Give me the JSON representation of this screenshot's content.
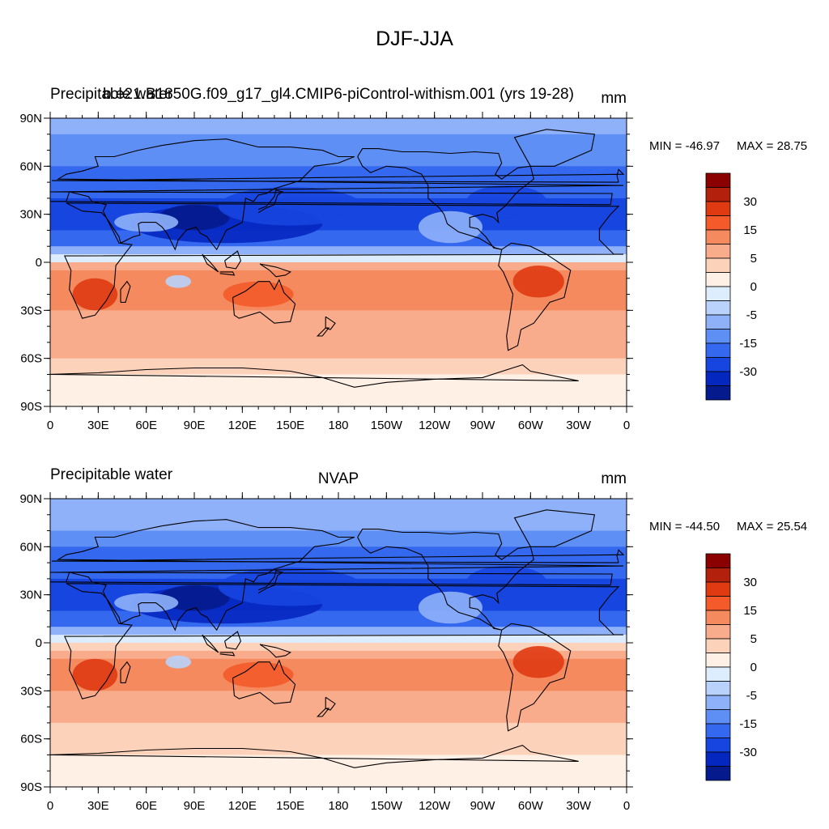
{
  "figure_title": "DJF-JJA",
  "colors": {
    "levels": [
      "#8b0000",
      "#b3200c",
      "#e03a12",
      "#f45a2a",
      "#f58a5e",
      "#f9ac8c",
      "#fdd2bb",
      "#fff0e6",
      "#deedfd",
      "#b9d2fb",
      "#8fb1fa",
      "#5d8ff5",
      "#3468ef",
      "#1745e0",
      "#0427c0",
      "#051a8c"
    ],
    "land_outline": "#000000",
    "axis": "#000000"
  },
  "chart_data": [
    {
      "type": "heatmap",
      "left_title": "Precipitable water",
      "center_title": "b.e21.B1850G.f09_g17_gl4.CMIP6-piControl-withism.001 (yrs 19-28)",
      "units": "mm",
      "min_label": "MIN = -46.97",
      "max_label": "MAX =  28.75",
      "min": -46.97,
      "max": 28.75,
      "x_ticks": [
        "0",
        "30E",
        "60E",
        "90E",
        "120E",
        "150E",
        "180",
        "150W",
        "120W",
        "90W",
        "60W",
        "30W",
        "0"
      ],
      "y_ticks": [
        "90N",
        "60N",
        "30N",
        "0",
        "30S",
        "60S",
        "90S"
      ],
      "colorbar_labels": [
        "30",
        "15",
        "5",
        "0",
        "-5",
        "-15",
        "-30"
      ],
      "zonal_profile": {
        "lat": [
          90,
          80,
          70,
          60,
          50,
          40,
          30,
          20,
          10,
          5,
          0,
          -5,
          -10,
          -20,
          -30,
          -40,
          -50,
          -60,
          -70,
          -80,
          -90
        ],
        "value": [
          -8,
          -10,
          -12,
          -15,
          -18,
          -22,
          -24,
          -20,
          -14,
          -4,
          3,
          9,
          13,
          12,
          10,
          8,
          6,
          4,
          2,
          1,
          0
        ]
      }
    },
    {
      "type": "heatmap",
      "left_title": "Precipitable water",
      "center_title": "NVAP",
      "units": "mm",
      "min_label": "MIN = -44.50",
      "max_label": "MAX =  25.54",
      "min": -44.5,
      "max": 25.54,
      "x_ticks": [
        "0",
        "30E",
        "60E",
        "90E",
        "120E",
        "150E",
        "180",
        "150W",
        "120W",
        "90W",
        "60W",
        "30W",
        "0"
      ],
      "y_ticks": [
        "90N",
        "60N",
        "30N",
        "0",
        "30S",
        "60S",
        "90S"
      ],
      "colorbar_labels": [
        "30",
        "15",
        "5",
        "0",
        "-5",
        "-15",
        "-30"
      ],
      "zonal_profile": {
        "lat": [
          90,
          80,
          70,
          60,
          50,
          40,
          30,
          20,
          10,
          5,
          0,
          -5,
          -10,
          -20,
          -30,
          -40,
          -50,
          -60,
          -70,
          -80,
          -90
        ],
        "value": [
          -8,
          -9,
          -11,
          -14,
          -17,
          -21,
          -23,
          -19,
          -13,
          -4,
          2,
          7,
          11,
          11,
          9,
          7,
          5,
          4,
          2,
          1,
          0
        ]
      }
    }
  ]
}
